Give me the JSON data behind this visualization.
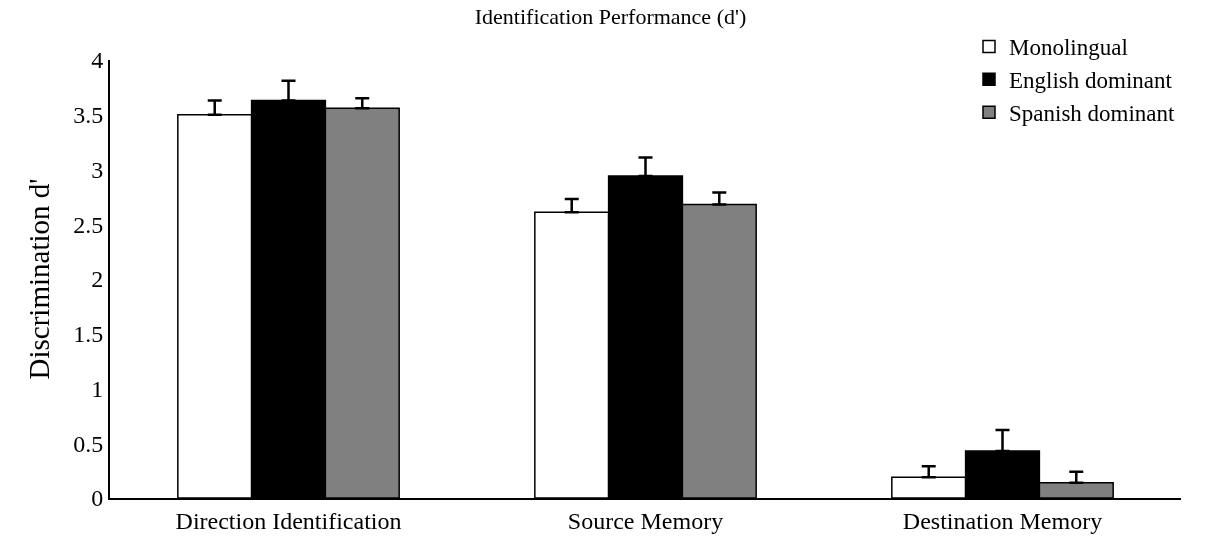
{
  "chart_data": {
    "type": "bar",
    "title": "Identification Performance (d')",
    "ylabel": "Discrimination d'",
    "categories": [
      "Direction Identification",
      "Source Memory",
      "Destination Memory"
    ],
    "series": [
      {
        "name": "Monolingual",
        "color": "#ffffff",
        "values": [
          3.5,
          2.61,
          0.19
        ],
        "errors": [
          [
            3.5,
            3.63
          ],
          [
            2.61,
            2.73
          ],
          [
            0.19,
            0.29
          ]
        ]
      },
      {
        "name": "English dominant",
        "color": "#000000",
        "values": [
          3.63,
          2.94,
          0.43
        ],
        "errors": [
          [
            3.63,
            3.81
          ],
          [
            2.94,
            3.11
          ],
          [
            0.43,
            0.62
          ]
        ]
      },
      {
        "name": "Spanish dominant",
        "color": "#808080",
        "values": [
          3.56,
          2.68,
          0.14
        ],
        "errors": [
          [
            3.56,
            3.65
          ],
          [
            2.68,
            2.79
          ],
          [
            0.14,
            0.24
          ]
        ]
      }
    ],
    "ylim": [
      0,
      4
    ],
    "yticks": [
      0,
      0.5,
      1,
      1.5,
      2,
      2.5,
      3,
      3.5,
      4
    ],
    "grid": false,
    "legend": "top right"
  }
}
